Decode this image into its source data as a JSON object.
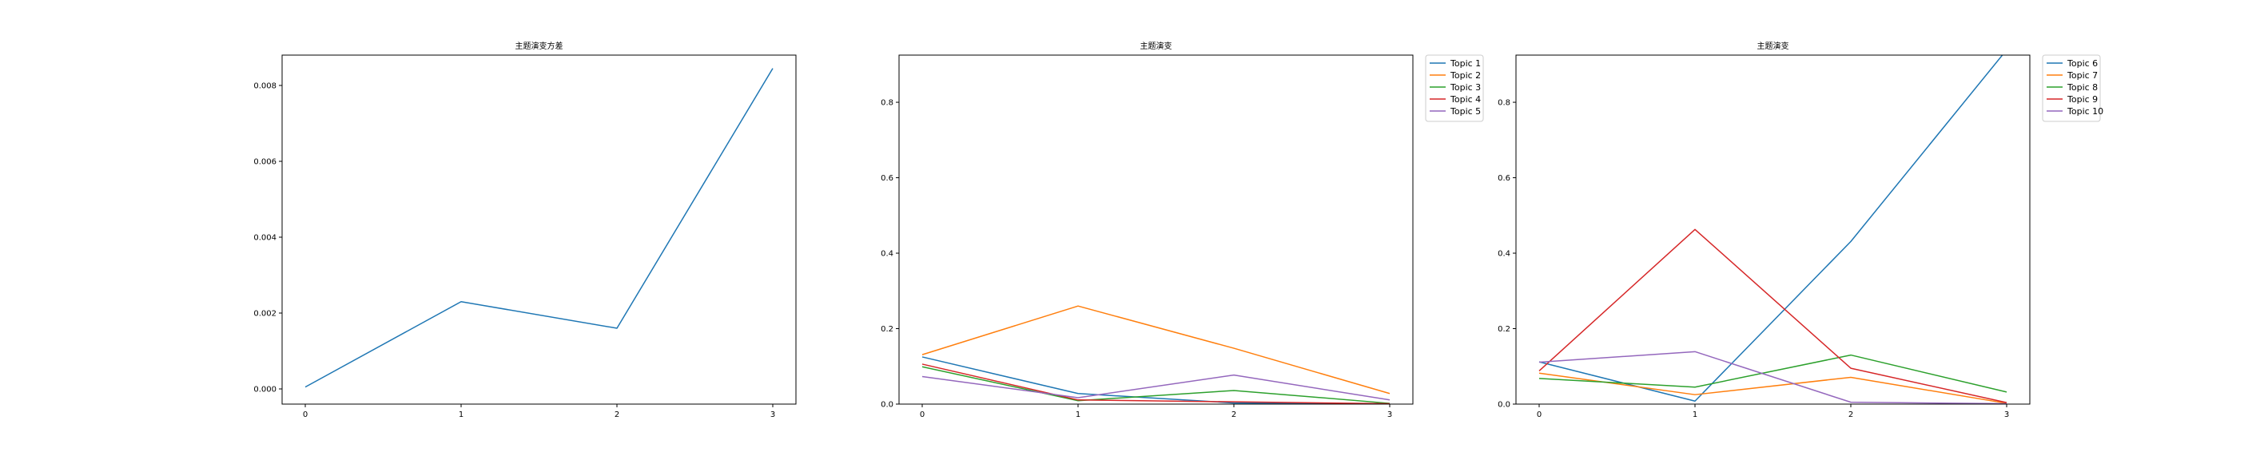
{
  "chart_data": [
    {
      "type": "line",
      "title": "主题演变方差",
      "xlabel": "",
      "ylabel": "",
      "x": [
        0,
        1,
        2,
        3
      ],
      "xticks": [
        "0",
        "1",
        "2",
        "3"
      ],
      "yticks": [
        "0.000",
        "0.002",
        "0.004",
        "0.006",
        "0.008"
      ],
      "ylim": [
        -0.0004,
        0.0088
      ],
      "grid": false,
      "legend": "none",
      "series": [
        {
          "color": "#1f77b4",
          "values": [
            5e-05,
            0.0023,
            0.0016,
            0.00845
          ]
        }
      ]
    },
    {
      "type": "line",
      "title": "主题演变",
      "xlabel": "",
      "ylabel": "",
      "x": [
        0,
        1,
        2,
        3
      ],
      "xticks": [
        "0",
        "1",
        "2",
        "3"
      ],
      "yticks": [
        "0.0",
        "0.2",
        "0.4",
        "0.6",
        "0.8"
      ],
      "ylim": [
        0,
        0.925
      ],
      "grid": false,
      "legend": "outside-top-right",
      "series": [
        {
          "name": "Topic 1",
          "color": "#1f77b4",
          "values": [
            0.125,
            0.028,
            0.003,
            0.001
          ]
        },
        {
          "name": "Topic 2",
          "color": "#ff7f0e",
          "values": [
            0.131,
            0.26,
            0.148,
            0.028
          ]
        },
        {
          "name": "Topic 3",
          "color": "#2ca02c",
          "values": [
            0.099,
            0.009,
            0.036,
            0.002
          ]
        },
        {
          "name": "Topic 4",
          "color": "#d62728",
          "values": [
            0.106,
            0.011,
            0.006,
            0.001
          ]
        },
        {
          "name": "Topic 5",
          "color": "#9467bd",
          "values": [
            0.073,
            0.017,
            0.077,
            0.011
          ]
        }
      ]
    },
    {
      "type": "line",
      "title": "主题演变",
      "xlabel": "",
      "ylabel": "",
      "x": [
        0,
        1,
        2,
        3
      ],
      "xticks": [
        "0",
        "1",
        "2",
        "3"
      ],
      "yticks": [
        "0.0",
        "0.2",
        "0.4",
        "0.6",
        "0.8"
      ],
      "ylim": [
        0,
        0.925
      ],
      "grid": false,
      "legend": "outside-top-right",
      "series": [
        {
          "name": "Topic 6",
          "color": "#1f77b4",
          "values": [
            0.112,
            0.008,
            0.431,
            0.939
          ]
        },
        {
          "name": "Topic 7",
          "color": "#ff7f0e",
          "values": [
            0.082,
            0.025,
            0.071,
            0.002
          ]
        },
        {
          "name": "Topic 8",
          "color": "#2ca02c",
          "values": [
            0.068,
            0.045,
            0.13,
            0.032
          ]
        },
        {
          "name": "Topic 9",
          "color": "#d62728",
          "values": [
            0.088,
            0.463,
            0.095,
            0.004
          ]
        },
        {
          "name": "Topic 10",
          "color": "#e377c2",
          "values": [
            0.111,
            0.139,
            0.005,
            0.001
          ]
        }
      ]
    }
  ]
}
